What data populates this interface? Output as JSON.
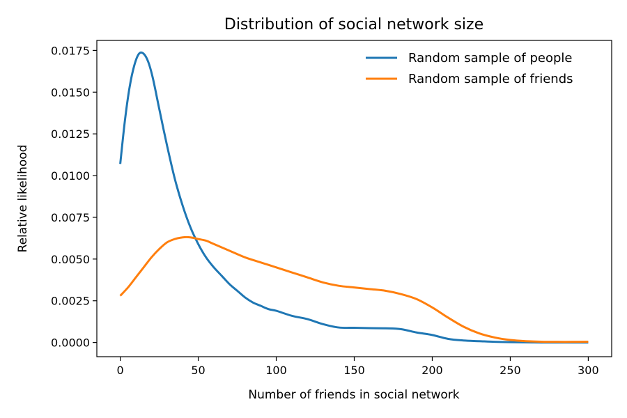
{
  "chart_data": {
    "type": "line",
    "title": "Distribution of social network size",
    "xlabel": "Number of friends in social network",
    "ylabel": "Relative likelihood",
    "xlim": [
      -15,
      315
    ],
    "ylim": [
      -0.00085,
      0.0181
    ],
    "xticks": [
      0,
      50,
      100,
      150,
      200,
      250,
      300
    ],
    "yticks": [
      0.0,
      0.0025,
      0.005,
      0.0075,
      0.01,
      0.0125,
      0.015,
      0.0175
    ],
    "xtick_labels": [
      "0",
      "50",
      "100",
      "150",
      "200",
      "250",
      "300"
    ],
    "ytick_labels": [
      "0.0000",
      "0.0025",
      "0.0050",
      "0.0075",
      "0.0100",
      "0.0125",
      "0.0150",
      "0.0175"
    ],
    "grid": false,
    "legend_position": "top-right",
    "series": [
      {
        "name": "Random sample of people",
        "color": "#1f77b4",
        "x": [
          0,
          3,
          6,
          9,
          12,
          15,
          18,
          21,
          25,
          30,
          35,
          40,
          45,
          50,
          55,
          60,
          65,
          70,
          75,
          80,
          85,
          90,
          95,
          100,
          110,
          120,
          130,
          140,
          150,
          160,
          170,
          180,
          190,
          200,
          210,
          220,
          230,
          240,
          250,
          260,
          270,
          280,
          290,
          300
        ],
        "y": [
          0.0107,
          0.0133,
          0.0153,
          0.0166,
          0.0173,
          0.0173,
          0.0168,
          0.0158,
          0.014,
          0.0118,
          0.0098,
          0.0082,
          0.0069,
          0.0059,
          0.0051,
          0.0045,
          0.004,
          0.0035,
          0.0031,
          0.0027,
          0.0024,
          0.0022,
          0.002,
          0.0019,
          0.0016,
          0.0014,
          0.0011,
          0.0009,
          0.00088,
          0.00086,
          0.00085,
          0.0008,
          0.0006,
          0.00045,
          0.00022,
          0.00012,
          8e-05,
          4e-05,
          2e-05,
          1e-05,
          0.0,
          0.0,
          0.0,
          0.0
        ]
      },
      {
        "name": "Random sample of friends",
        "color": "#ff7f0e",
        "x": [
          0,
          5,
          10,
          15,
          20,
          25,
          30,
          35,
          40,
          45,
          50,
          55,
          60,
          70,
          80,
          90,
          100,
          110,
          120,
          130,
          140,
          150,
          160,
          170,
          180,
          190,
          200,
          210,
          220,
          230,
          240,
          250,
          260,
          270,
          280,
          290,
          300
        ],
        "y": [
          0.0028,
          0.0033,
          0.0039,
          0.0045,
          0.0051,
          0.0056,
          0.006,
          0.0062,
          0.0063,
          0.0063,
          0.0062,
          0.0061,
          0.0059,
          0.0055,
          0.0051,
          0.0048,
          0.0045,
          0.0042,
          0.0039,
          0.0036,
          0.0034,
          0.0033,
          0.0032,
          0.0031,
          0.0029,
          0.0026,
          0.0021,
          0.0015,
          0.00095,
          0.00055,
          0.0003,
          0.00015,
          8e-05,
          5e-05,
          4e-05,
          4e-05,
          5e-05
        ]
      }
    ]
  }
}
